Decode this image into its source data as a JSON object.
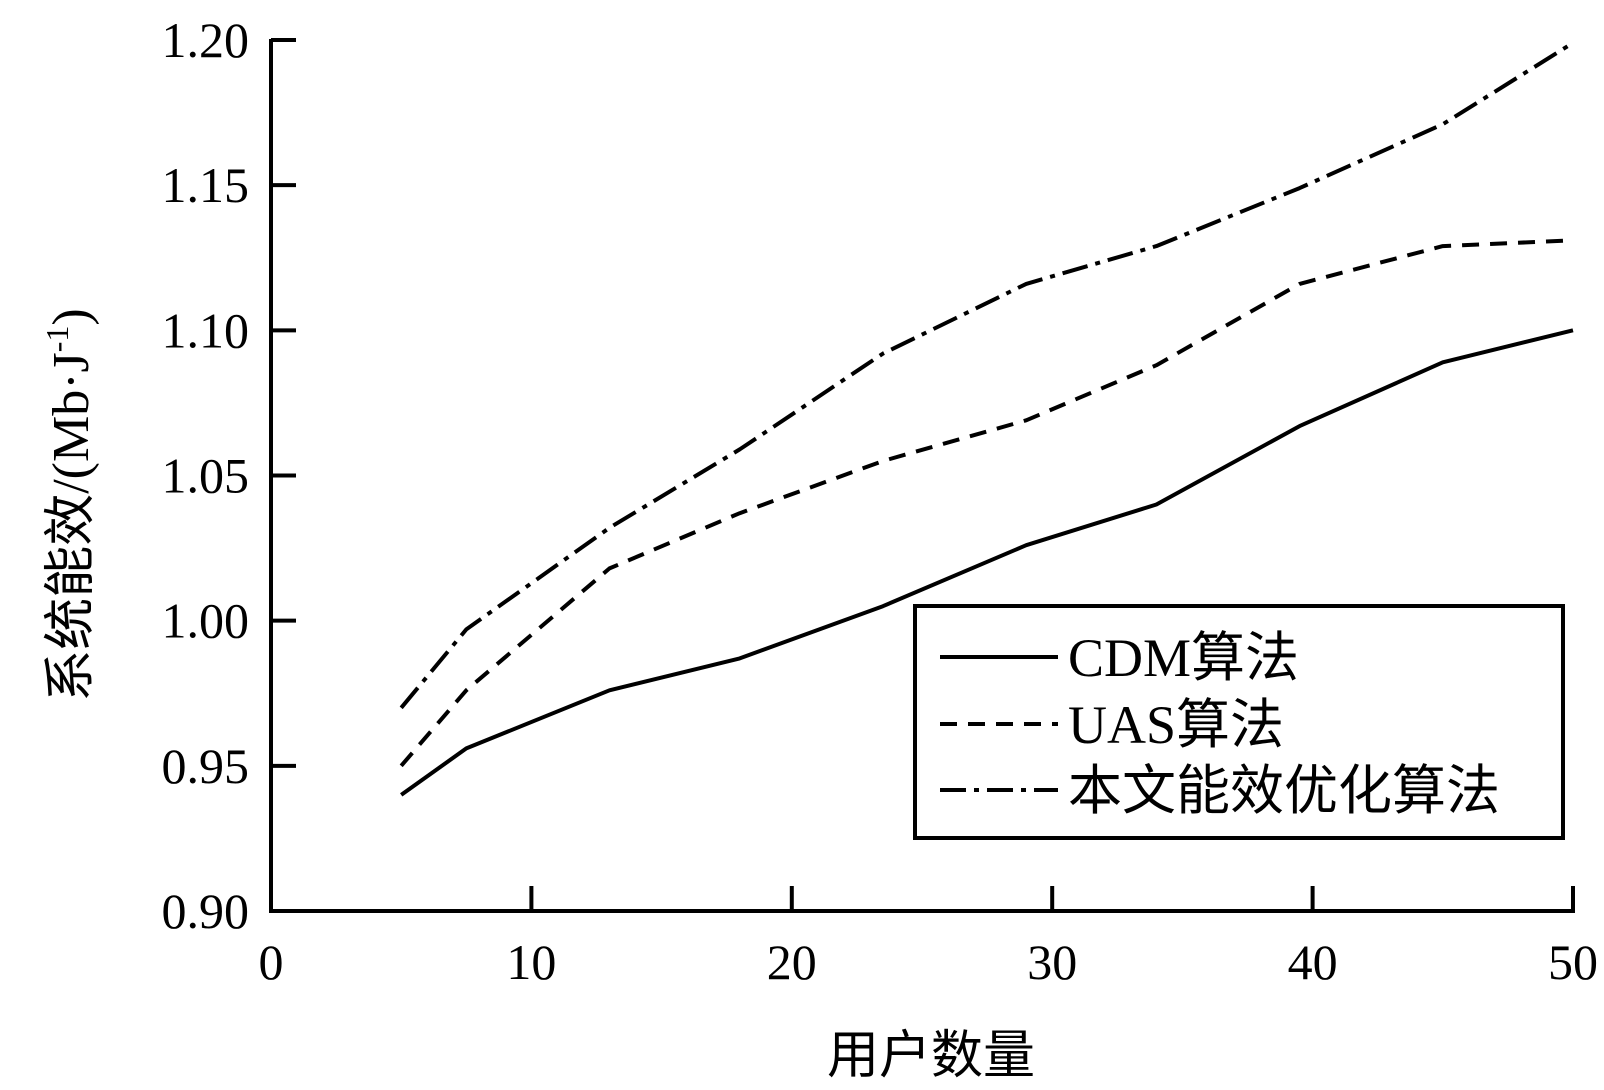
{
  "chart_data": {
    "type": "line",
    "xlabel": "用户数量",
    "ylabel": "系统能效/(Mb·J",
    "ylabel_sup": "-1",
    "ylabel_close": ")",
    "xlim": [
      0,
      50
    ],
    "ylim": [
      0.9,
      1.2
    ],
    "xticks": [
      0,
      10,
      20,
      30,
      40,
      50
    ],
    "xtick_labels": [
      "0",
      "10",
      "20",
      "30",
      "40",
      "50"
    ],
    "yticks": [
      0.9,
      0.95,
      1.0,
      1.05,
      1.1,
      1.15,
      1.2
    ],
    "ytick_labels": [
      "0.90",
      "0.95",
      "1.00",
      "1.05",
      "1.10",
      "1.15",
      "1.20"
    ],
    "grid": false,
    "legend_position": "bottom-right",
    "series": [
      {
        "name": "CDM算法",
        "line_style": "solid",
        "x": [
          5,
          7.5,
          13,
          18,
          23.5,
          29,
          34,
          39.5,
          45,
          50
        ],
        "y": [
          0.94,
          0.956,
          0.976,
          0.987,
          1.005,
          1.026,
          1.04,
          1.067,
          1.089,
          1.1
        ]
      },
      {
        "name": "UAS算法",
        "line_style": "dashed",
        "x": [
          5,
          7.5,
          13,
          18,
          23.5,
          29,
          34,
          39.5,
          45,
          50
        ],
        "y": [
          0.95,
          0.976,
          1.018,
          1.037,
          1.055,
          1.069,
          1.088,
          1.116,
          1.129,
          1.131
        ]
      },
      {
        "name": "本文能效优化算法",
        "line_style": "dashdot",
        "x": [
          5,
          7.5,
          13,
          18,
          23.5,
          29,
          34,
          39.5,
          45,
          50
        ],
        "y": [
          0.97,
          0.997,
          1.032,
          1.059,
          1.092,
          1.116,
          1.129,
          1.149,
          1.171,
          1.199
        ]
      }
    ],
    "colors": {
      "line": "#000000",
      "background": "#ffffff"
    }
  }
}
